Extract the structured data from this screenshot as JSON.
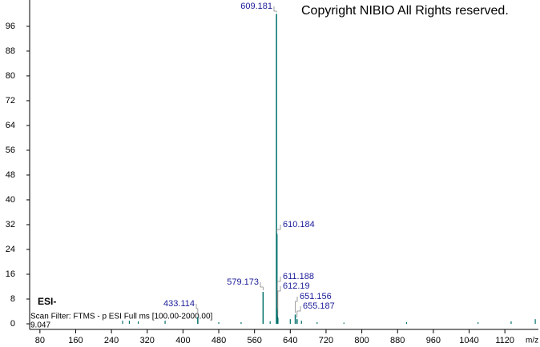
{
  "chart_data": {
    "type": "stem",
    "x_label": "m/z",
    "copyright": "Copyright NIBIO All Rights reserved.",
    "ionization": "ESI-",
    "scan_filter": "Scan Filter: FTMS - p ESI Full ms [100.00-2000.00]",
    "scale_note": "9.047",
    "color": "#00706a",
    "label_color": "#1a1a99",
    "x": [
      609.181,
      610.184,
      579.173,
      611.188,
      612.19,
      651.156,
      655.187,
      433.114
    ],
    "values": [
      100,
      29,
      10.3,
      4.5,
      2,
      3,
      1.5,
      2.2
    ],
    "minor_x": [
      265,
      280,
      300,
      360,
      480,
      530,
      595,
      640,
      665,
      700,
      760,
      900,
      1060,
      1134,
      1188
    ],
    "minor_values": [
      1,
      1,
      0.8,
      1,
      0.5,
      0.5,
      0.8,
      1.5,
      1,
      0.5,
      0.4,
      0.5,
      0.5,
      0.8,
      1.5
    ],
    "xlim": [
      57,
      1195
    ],
    "ylim": [
      0,
      103.2
    ],
    "xticks": [
      80,
      160,
      240,
      320,
      400,
      480,
      560,
      640,
      720,
      800,
      880,
      960,
      1040,
      1120
    ],
    "yticks": [
      0,
      8,
      16,
      24,
      32,
      40,
      48,
      56,
      64,
      72,
      80,
      88,
      96
    ]
  }
}
